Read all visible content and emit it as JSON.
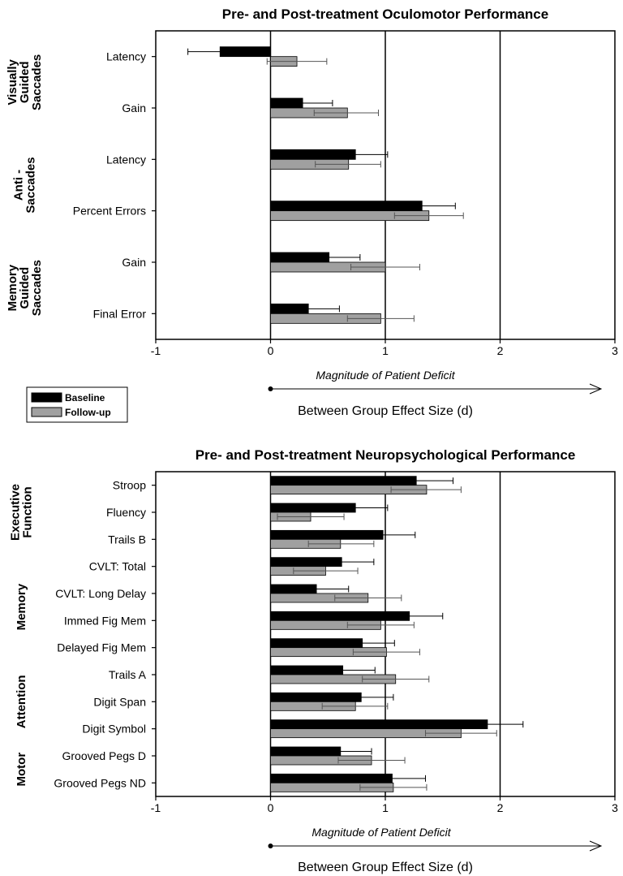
{
  "colors": {
    "baseline": "#000000",
    "followup": "#a0a0a0",
    "axis": "#000000"
  },
  "legend": {
    "baseline": "Baseline",
    "followup": "Follow-up"
  },
  "chart_data": [
    {
      "type": "bar",
      "orientation": "horizontal",
      "title": "Pre- and Post-treatment Oculomotor Performance",
      "xlabel": "Between Group Effect Size (d)",
      "arrow_label": "Magnitude of Patient Deficit",
      "xlim": [
        -1,
        3
      ],
      "xticks": [
        "-1",
        "0",
        "1",
        "2",
        "3"
      ],
      "reference_lines": [
        0,
        1,
        2
      ],
      "groups": [
        {
          "label_lines": [
            "Visually",
            "Guided",
            "Saccades"
          ],
          "categories": [
            "Latency",
            "Gain"
          ]
        },
        {
          "label_lines": [
            "Anti -",
            "Saccades"
          ],
          "categories": [
            "Latency",
            "Percent Errors"
          ]
        },
        {
          "label_lines": [
            "Memory",
            "Guided",
            "Saccades"
          ],
          "categories": [
            "Gain",
            "Final Error"
          ]
        }
      ],
      "categories": [
        "Latency",
        "Gain",
        "Latency",
        "Percent Errors",
        "Gain",
        "Final Error"
      ],
      "series": [
        {
          "name": "Baseline",
          "values": [
            -0.44,
            0.28,
            0.74,
            1.32,
            0.51,
            0.33
          ],
          "error_low": [
            -0.72,
            0.0,
            0.45,
            1.03,
            0.22,
            0.04
          ],
          "error_high": [
            -0.16,
            0.54,
            1.02,
            1.61,
            0.78,
            0.6
          ]
        },
        {
          "name": "Follow-up",
          "values": [
            0.23,
            0.67,
            0.68,
            1.38,
            1.0,
            0.96
          ],
          "error_low": [
            -0.03,
            0.38,
            0.39,
            1.08,
            0.7,
            0.67
          ],
          "error_high": [
            0.49,
            0.94,
            0.96,
            1.68,
            1.3,
            1.25
          ]
        }
      ]
    },
    {
      "type": "bar",
      "orientation": "horizontal",
      "title": "Pre- and Post-treatment Neuropsychological Performance",
      "xlabel": "Between Group Effect Size (d)",
      "arrow_label": "Magnitude of Patient Deficit",
      "xlim": [
        -1,
        3
      ],
      "xticks": [
        "-1",
        "0",
        "1",
        "2",
        "3"
      ],
      "reference_lines": [
        0,
        1,
        2
      ],
      "groups": [
        {
          "label_lines": [
            "Executive",
            "Function"
          ],
          "categories": [
            "Stroop",
            "Fluency",
            "Trails B"
          ]
        },
        {
          "label_lines": [
            "Memory"
          ],
          "categories": [
            "CVLT: Total",
            "CVLT: Long Delay",
            "Immed Fig Mem",
            "Delayed Fig Mem"
          ]
        },
        {
          "label_lines": [
            "Attention"
          ],
          "categories": [
            "Trails A",
            "Digit Span",
            "Digit Symbol"
          ]
        },
        {
          "label_lines": [
            "Motor"
          ],
          "categories": [
            "Grooved Pegs D",
            "Grooved Pegs ND"
          ]
        }
      ],
      "categories": [
        "Stroop",
        "Fluency",
        "Trails B",
        "CVLT: Total",
        "CVLT: Long Delay",
        "Immed Fig Mem",
        "Delayed Fig Mem",
        "Trails A",
        "Digit Span",
        "Digit Symbol",
        "Grooved Pegs D",
        "Grooved Pegs ND"
      ],
      "series": [
        {
          "name": "Baseline",
          "values": [
            1.27,
            0.74,
            0.98,
            0.62,
            0.4,
            1.21,
            0.8,
            0.63,
            0.79,
            1.89,
            0.61,
            1.06
          ],
          "error_low": [
            0.95,
            0.46,
            0.7,
            0.34,
            0.12,
            0.92,
            0.51,
            0.35,
            0.51,
            1.57,
            0.33,
            0.77
          ],
          "error_high": [
            1.59,
            1.02,
            1.26,
            0.9,
            0.68,
            1.5,
            1.08,
            0.91,
            1.07,
            2.2,
            0.88,
            1.35
          ]
        },
        {
          "name": "Follow-up",
          "values": [
            1.36,
            0.35,
            0.61,
            0.48,
            0.85,
            0.96,
            1.01,
            1.09,
            0.74,
            1.66,
            0.88,
            1.07
          ],
          "error_low": [
            1.05,
            0.06,
            0.33,
            0.2,
            0.56,
            0.67,
            0.72,
            0.8,
            0.45,
            1.35,
            0.59,
            0.78
          ],
          "error_high": [
            1.66,
            0.64,
            0.9,
            0.76,
            1.14,
            1.25,
            1.3,
            1.38,
            1.02,
            1.97,
            1.17,
            1.36
          ]
        }
      ]
    }
  ]
}
